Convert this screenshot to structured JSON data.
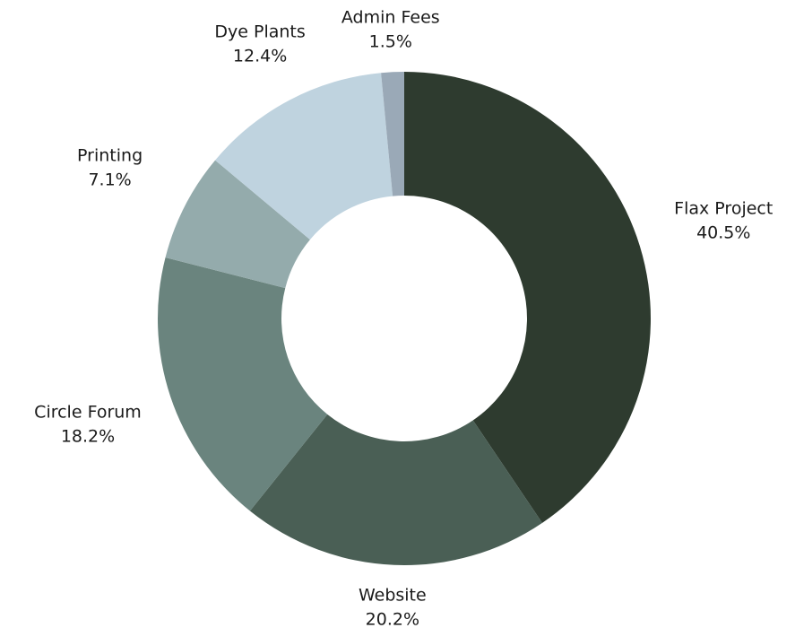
{
  "chart_data": {
    "type": "donut",
    "categories": [
      "Flax Project",
      "Website",
      "Circle Forum",
      "Printing",
      "Dye Plants",
      "Admin Fees"
    ],
    "values": [
      40.5,
      20.2,
      18.2,
      7.1,
      12.4,
      1.5
    ],
    "value_labels": [
      "40.5%",
      "20.2%",
      "18.2%",
      "7.1%",
      "12.4%",
      "1.5%"
    ],
    "colors": [
      "#2e3b2f",
      "#4a5f55",
      "#6a847e",
      "#94abac",
      "#bfd3df",
      "#9aa9b7"
    ]
  }
}
